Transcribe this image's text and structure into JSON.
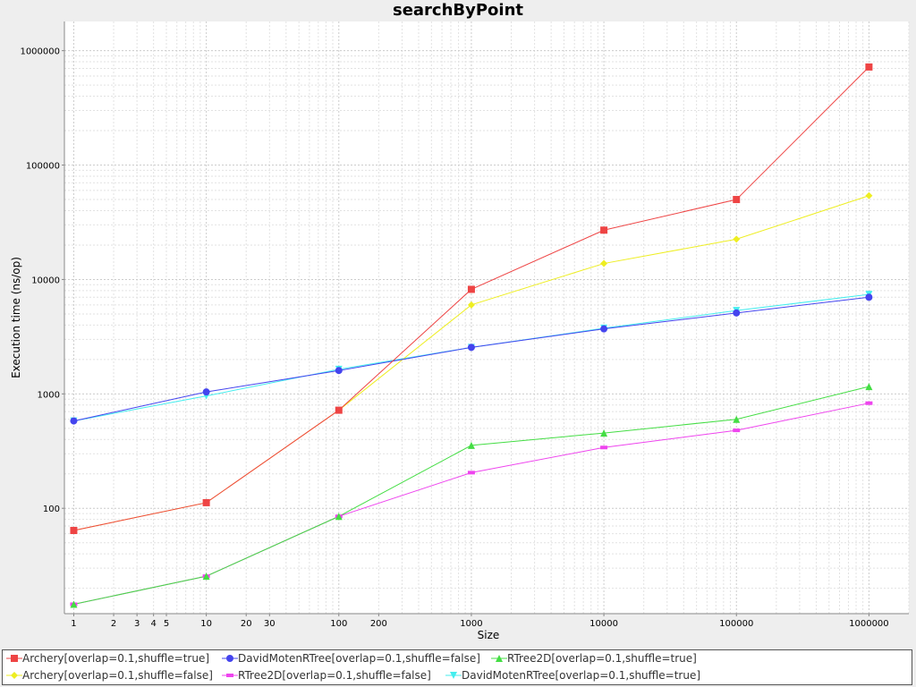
{
  "chart_data": {
    "type": "line",
    "title": "searchByPoint",
    "xlabel": "Size",
    "ylabel": "Execution time (ns/op)",
    "x_scale": "log",
    "y_scale": "log",
    "xlim": [
      0.85,
      2000000
    ],
    "ylim": [
      12,
      1800000
    ],
    "x_ticks": [
      "1",
      "2",
      "3",
      "4",
      "5",
      "10",
      "20",
      "30",
      "100",
      "200",
      "1000",
      "10000",
      "100000",
      "1000000"
    ],
    "y_ticks": [
      "100",
      "1000",
      "10000",
      "100000",
      "1000000"
    ],
    "grid": true,
    "legend_position": "bottom",
    "x": [
      1,
      10,
      100,
      1000,
      10000,
      100000,
      1000000
    ],
    "series": [
      {
        "name": "Archery[overlap=0.1,shuffle=true]",
        "color": "#ee4444",
        "marker": "square",
        "values": [
          64,
          112,
          720,
          8200,
          27000,
          50000,
          720000
        ]
      },
      {
        "name": "DavidMotenRTree[overlap=0.1,shuffle=false]",
        "color": "#4444ee",
        "marker": "circle",
        "values": [
          580,
          1040,
          1600,
          2550,
          3700,
          5100,
          7000
        ]
      },
      {
        "name": "RTree2D[overlap=0.1,shuffle=true]",
        "color": "#44dd44",
        "marker": "triangle-up",
        "values": [
          14.5,
          25.5,
          85,
          355,
          455,
          600,
          1160
        ]
      },
      {
        "name": "Archery[overlap=0.1,shuffle=false]",
        "color": "#eeee22",
        "marker": "diamond",
        "values": [
          64,
          112,
          720,
          6000,
          13800,
          22500,
          54000
        ]
      },
      {
        "name": "RTree2D[overlap=0.1,shuffle=false]",
        "color": "#ee44ee",
        "marker": "rect",
        "values": [
          14.5,
          25.5,
          85,
          205,
          340,
          480,
          830
        ]
      },
      {
        "name": "DavidMotenRTree[overlap=0.1,shuffle=true]",
        "color": "#44eeee",
        "marker": "triangle-down",
        "values": [
          580,
          960,
          1640,
          2550,
          3750,
          5350,
          7400
        ]
      }
    ]
  }
}
